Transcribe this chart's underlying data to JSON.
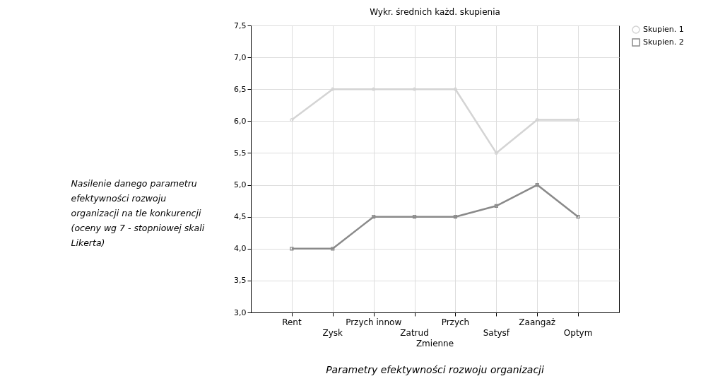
{
  "chart_data": {
    "type": "line",
    "title": "Wykr. średnich każd. skupienia",
    "xlabel": "Parametry efektywności rozwoju organizacji",
    "ylabel": "Nasilenie danego parametru efektywności rozwoju organizacji na tle konkurencji (oceny wg 7 - stopniowej skali Likerta)",
    "categories": [
      "Rent",
      "Zysk",
      "Przych innow",
      "Zatrud",
      "Przych",
      "Satysf",
      "Zaangaż",
      "Optym"
    ],
    "annotations": [
      "Zmienne"
    ],
    "series": [
      {
        "name": "Skupien. 1",
        "color": "#d4d4d4",
        "marker": "circle",
        "values": [
          6.02,
          6.5,
          6.5,
          6.5,
          6.5,
          5.5,
          6.02,
          6.02
        ]
      },
      {
        "name": "Skupien. 2",
        "color": "#8a8a8a",
        "marker": "square",
        "values": [
          4.0,
          4.0,
          4.5,
          4.5,
          4.5,
          4.67,
          5.0,
          4.5
        ]
      }
    ],
    "ylim": [
      3.0,
      7.5
    ],
    "yticks": [
      {
        "value": 3.0,
        "label": "3,0"
      },
      {
        "value": 3.5,
        "label": "3,5"
      },
      {
        "value": 4.0,
        "label": "4,0"
      },
      {
        "value": 4.5,
        "label": "4,5"
      },
      {
        "value": 5.0,
        "label": "5,0"
      },
      {
        "value": 5.5,
        "label": "5,5"
      },
      {
        "value": 6.0,
        "label": "6,0"
      },
      {
        "value": 6.5,
        "label": "6,5"
      },
      {
        "value": 7.0,
        "label": "7,0"
      },
      {
        "value": 7.5,
        "label": "7,5"
      }
    ],
    "grid": true,
    "legend": "right",
    "line_style": "solid"
  }
}
